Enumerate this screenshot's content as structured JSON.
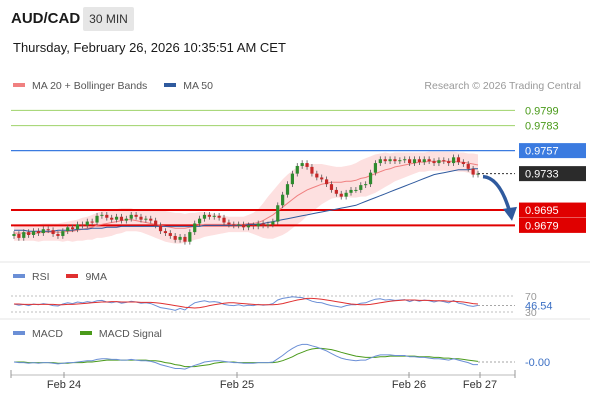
{
  "header": {
    "symbol": "AUD/CAD",
    "timeframe": "30 MIN",
    "datetime": "Thursday, February 26, 2026 10:35:51 AM CET"
  },
  "legend": {
    "ma20_label": "MA 20 + Bollinger Bands",
    "ma50_label": "MA 50",
    "credit": "Research © 2026 Trading Central",
    "rsi_label": "RSI",
    "rsi_ma_label": "9MA",
    "macd_label": "MACD",
    "macd_signal_label": "MACD Signal"
  },
  "colors": {
    "ma20": "#f08080",
    "ma50": "#2f5a9e",
    "band_fill": "#fde0e0",
    "resistance_green": "#9ed26a",
    "pivot_blue": "#3b7be0",
    "support_red": "#e00000",
    "candle_up": "#2e8b2e",
    "candle_down": "#c62828",
    "arrow": "#2f5a9e",
    "rsi": "#6b8fd6",
    "rsi_ma": "#e03030",
    "macd": "#6b8fd6",
    "macd_signal": "#4a9a1a"
  },
  "chart_data": [
    {
      "type": "candlestick",
      "title": "AUD/CAD",
      "ylim": [
        0.9645,
        0.9815
      ],
      "x_tick_labels": [
        "Feb 24",
        "Feb 25",
        "Feb 26",
        "Feb 27"
      ],
      "levels": [
        {
          "value": 0.9799,
          "label": "0.9799",
          "kind": "resistance"
        },
        {
          "value": 0.9783,
          "label": "0.9783",
          "kind": "resistance"
        },
        {
          "value": 0.9757,
          "label": "0.9757",
          "kind": "pivot"
        },
        {
          "value": 0.9695,
          "label": "0.9695",
          "kind": "support"
        },
        {
          "value": 0.9679,
          "label": "0.9679",
          "kind": "support"
        }
      ],
      "last_price": {
        "value": 0.9733,
        "label": "0.9733"
      },
      "close_series": [
        0.967,
        0.9666,
        0.9672,
        0.9669,
        0.9673,
        0.9671,
        0.9675,
        0.9674,
        0.967,
        0.9668,
        0.9673,
        0.9677,
        0.9675,
        0.968,
        0.9679,
        0.9683,
        0.9682,
        0.9689,
        0.969,
        0.9687,
        0.9685,
        0.9688,
        0.9684,
        0.9686,
        0.969,
        0.9688,
        0.9685,
        0.9686,
        0.9684,
        0.9679,
        0.9673,
        0.9671,
        0.9668,
        0.9664,
        0.9667,
        0.9662,
        0.9672,
        0.9681,
        0.9686,
        0.969,
        0.9688,
        0.9689,
        0.9687,
        0.9682,
        0.968,
        0.9679,
        0.968,
        0.9677,
        0.9679,
        0.9678,
        0.9681,
        0.9679,
        0.968,
        0.9683,
        0.97,
        0.9711,
        0.9722,
        0.9733,
        0.9741,
        0.9744,
        0.974,
        0.9733,
        0.9729,
        0.9727,
        0.9722,
        0.9716,
        0.9712,
        0.9709,
        0.9713,
        0.9716,
        0.9716,
        0.9721,
        0.9722,
        0.9734,
        0.9744,
        0.9748,
        0.9746,
        0.9748,
        0.9746,
        0.9747,
        0.9748,
        0.9744,
        0.9748,
        0.9745,
        0.9748,
        0.9746,
        0.9744,
        0.9747,
        0.9746,
        0.9744,
        0.975,
        0.9745,
        0.9743,
        0.9738,
        0.9732,
        0.9733
      ],
      "ma20": [
        0.9671,
        0.9671,
        0.9671,
        0.9671,
        0.9671,
        0.9671,
        0.9672,
        0.9672,
        0.9672,
        0.9672,
        0.9672,
        0.9673,
        0.9673,
        0.9674,
        0.9675,
        0.9676,
        0.9677,
        0.9679,
        0.968,
        0.9681,
        0.9682,
        0.9683,
        0.9684,
        0.9685,
        0.9685,
        0.9684,
        0.9683,
        0.9682,
        0.9681,
        0.968,
        0.9679,
        0.9678,
        0.9677,
        0.9676,
        0.9676,
        0.9676,
        0.9677,
        0.9678,
        0.9679,
        0.968,
        0.968,
        0.968,
        0.968,
        0.968,
        0.968,
        0.968,
        0.968,
        0.968,
        0.9681,
        0.9681,
        0.9682,
        0.9684,
        0.9687,
        0.969,
        0.9694,
        0.9698,
        0.9702,
        0.9706,
        0.971,
        0.9713,
        0.9716,
        0.9718,
        0.972,
        0.9722,
        0.9723,
        0.9724,
        0.9724,
        0.9724,
        0.9725,
        0.9725,
        0.9726,
        0.9728,
        0.9729,
        0.9731,
        0.9733,
        0.9735,
        0.9737,
        0.9738,
        0.974,
        0.9741,
        0.9742,
        0.9743,
        0.9744,
        0.9745,
        0.9745,
        0.9746,
        0.9746,
        0.9746,
        0.9746,
        0.9746,
        0.9746,
        0.9745,
        0.9745,
        0.9744,
        0.9743,
        0.9742
      ],
      "ma50": [
        0.9674,
        0.9674,
        0.9674,
        0.9673,
        0.9673,
        0.9673,
        0.9673,
        0.9673,
        0.9673,
        0.9674,
        0.9674,
        0.9674,
        0.9674,
        0.9675,
        0.9675,
        0.9675,
        0.9676,
        0.9676,
        0.9676,
        0.9677,
        0.9677,
        0.9677,
        0.9678,
        0.9678,
        0.9678,
        0.9678,
        0.9678,
        0.9678,
        0.9678,
        0.9678,
        0.9678,
        0.9678,
        0.9678,
        0.9678,
        0.9678,
        0.9678,
        0.9678,
        0.9678,
        0.9678,
        0.9679,
        0.9679,
        0.9679,
        0.9679,
        0.9679,
        0.9679,
        0.9679,
        0.9679,
        0.9679,
        0.968,
        0.968,
        0.968,
        0.9681,
        0.9682,
        0.9683,
        0.9684,
        0.9685,
        0.9686,
        0.9687,
        0.9688,
        0.9689,
        0.969,
        0.9691,
        0.9692,
        0.9693,
        0.9694,
        0.9695,
        0.9696,
        0.9697,
        0.9698,
        0.9699,
        0.97,
        0.9702,
        0.9704,
        0.9706,
        0.9708,
        0.971,
        0.9712,
        0.9714,
        0.9716,
        0.9718,
        0.972,
        0.9722,
        0.9724,
        0.9726,
        0.9728,
        0.973,
        0.9732,
        0.9733,
        0.9734,
        0.9735,
        0.9736,
        0.9737,
        0.9737,
        0.9737,
        0.9738,
        0.9738
      ],
      "band_width": [
        0.0008,
        0.0008,
        0.0008,
        0.0008,
        0.0008,
        0.0009,
        0.0009,
        0.0009,
        0.0009,
        0.0009,
        0.001,
        0.001,
        0.0011,
        0.0011,
        0.0012,
        0.0012,
        0.0013,
        0.0013,
        0.0014,
        0.0014,
        0.0014,
        0.0013,
        0.0013,
        0.0012,
        0.0012,
        0.0011,
        0.0011,
        0.0012,
        0.0013,
        0.0014,
        0.0015,
        0.0016,
        0.0016,
        0.0016,
        0.0016,
        0.0015,
        0.0015,
        0.0014,
        0.0014,
        0.0013,
        0.0012,
        0.0011,
        0.001,
        0.0009,
        0.0008,
        0.0008,
        0.0008,
        0.0008,
        0.0009,
        0.0011,
        0.0014,
        0.0018,
        0.0022,
        0.0025,
        0.0027,
        0.0029,
        0.003,
        0.003,
        0.003,
        0.0029,
        0.0027,
        0.0025,
        0.0023,
        0.0021,
        0.0019,
        0.0017,
        0.0016,
        0.0016,
        0.0016,
        0.0017,
        0.0018,
        0.0019,
        0.002,
        0.002,
        0.002,
        0.0019,
        0.0018,
        0.0016,
        0.0015,
        0.0014,
        0.0013,
        0.0012,
        0.0011,
        0.001,
        0.001,
        0.001,
        0.001,
        0.001,
        0.001,
        0.001,
        0.001,
        0.001,
        0.001,
        0.001,
        0.0011,
        0.0011
      ]
    },
    {
      "type": "line",
      "title": "RSI",
      "ylim": [
        30,
        70
      ],
      "level_labels": [
        "70",
        "30"
      ],
      "last_value_label": "46.54",
      "rsi": [
        50,
        47,
        49,
        46,
        50,
        48,
        51,
        49,
        46,
        45,
        50,
        53,
        51,
        55,
        53,
        56,
        54,
        58,
        59,
        55,
        53,
        56,
        52,
        54,
        57,
        55,
        52,
        53,
        51,
        46,
        41,
        39,
        37,
        34,
        39,
        35,
        45,
        53,
        56,
        58,
        55,
        56,
        54,
        49,
        47,
        46,
        48,
        45,
        47,
        46,
        49,
        47,
        48,
        51,
        60,
        64,
        66,
        68,
        67,
        66,
        62,
        57,
        54,
        53,
        49,
        46,
        44,
        42,
        46,
        48,
        48,
        52,
        53,
        58,
        62,
        63,
        60,
        61,
        59,
        60,
        61,
        56,
        60,
        57,
        60,
        58,
        55,
        58,
        56,
        53,
        59,
        52,
        50,
        46,
        44,
        46.54
      ],
      "rsi_ma": [
        50,
        50,
        49,
        49,
        49,
        49,
        49,
        49,
        49,
        48,
        48,
        49,
        49,
        50,
        51,
        52,
        53,
        54,
        55,
        55,
        56,
        56,
        55,
        55,
        55,
        55,
        54,
        54,
        54,
        53,
        52,
        50,
        48,
        46,
        44,
        42,
        41,
        40,
        41,
        43,
        46,
        48,
        50,
        52,
        53,
        53,
        52,
        51,
        50,
        49,
        48,
        48,
        48,
        48,
        49,
        51,
        54,
        57,
        60,
        62,
        64,
        64,
        63,
        62,
        60,
        58,
        56,
        54,
        52,
        50,
        49,
        48,
        48,
        49,
        51,
        53,
        55,
        57,
        58,
        59,
        60,
        60,
        60,
        59,
        59,
        59,
        58,
        58,
        58,
        57,
        57,
        56,
        55,
        53,
        51,
        50
      ]
    },
    {
      "type": "line",
      "title": "MACD",
      "last_value_label": "-0.00",
      "macd": [
        0.0,
        -0.1,
        -0.1,
        -0.2,
        -0.1,
        -0.2,
        -0.1,
        -0.1,
        -0.2,
        -0.3,
        -0.2,
        -0.1,
        -0.1,
        0.0,
        0.1,
        0.2,
        0.2,
        0.4,
        0.5,
        0.5,
        0.4,
        0.4,
        0.3,
        0.3,
        0.4,
        0.3,
        0.2,
        0.2,
        0.1,
        -0.1,
        -0.4,
        -0.6,
        -0.8,
        -1.0,
        -1.0,
        -1.1,
        -0.8,
        -0.5,
        -0.3,
        0.0,
        0.1,
        0.2,
        0.2,
        0.1,
        0.0,
        -0.1,
        -0.1,
        -0.2,
        -0.2,
        -0.2,
        -0.1,
        -0.1,
        -0.1,
        0.0,
        0.5,
        1.0,
        1.6,
        2.1,
        2.5,
        2.7,
        2.7,
        2.5,
        2.3,
        2.0,
        1.7,
        1.3,
        0.9,
        0.6,
        0.4,
        0.3,
        0.2,
        0.3,
        0.3,
        0.6,
        0.9,
        1.1,
        1.1,
        1.1,
        1.0,
        1.0,
        1.0,
        0.8,
        0.8,
        0.7,
        0.7,
        0.6,
        0.5,
        0.5,
        0.4,
        0.3,
        0.5,
        0.3,
        0.1,
        -0.1,
        -0.4,
        -0.4
      ],
      "macd_signal": [
        0.0,
        0.0,
        0.0,
        -0.1,
        -0.1,
        -0.1,
        -0.1,
        -0.1,
        -0.1,
        -0.2,
        -0.2,
        -0.2,
        -0.1,
        -0.1,
        -0.1,
        0.0,
        0.0,
        0.1,
        0.2,
        0.3,
        0.3,
        0.3,
        0.3,
        0.3,
        0.3,
        0.3,
        0.3,
        0.3,
        0.2,
        0.2,
        0.1,
        -0.1,
        -0.2,
        -0.4,
        -0.5,
        -0.7,
        -0.7,
        -0.7,
        -0.6,
        -0.5,
        -0.4,
        -0.2,
        -0.1,
        0.0,
        0.0,
        0.0,
        -0.1,
        -0.1,
        -0.1,
        -0.1,
        -0.1,
        -0.1,
        -0.1,
        -0.1,
        0.0,
        0.2,
        0.5,
        0.8,
        1.2,
        1.5,
        1.8,
        2.0,
        2.1,
        2.1,
        2.0,
        1.9,
        1.7,
        1.5,
        1.3,
        1.1,
        0.9,
        0.8,
        0.7,
        0.7,
        0.7,
        0.8,
        0.8,
        0.9,
        0.9,
        0.9,
        0.9,
        0.9,
        0.9,
        0.8,
        0.8,
        0.8,
        0.7,
        0.7,
        0.6,
        0.6,
        0.5,
        0.5,
        0.4,
        0.3,
        0.2,
        0.1
      ]
    }
  ]
}
